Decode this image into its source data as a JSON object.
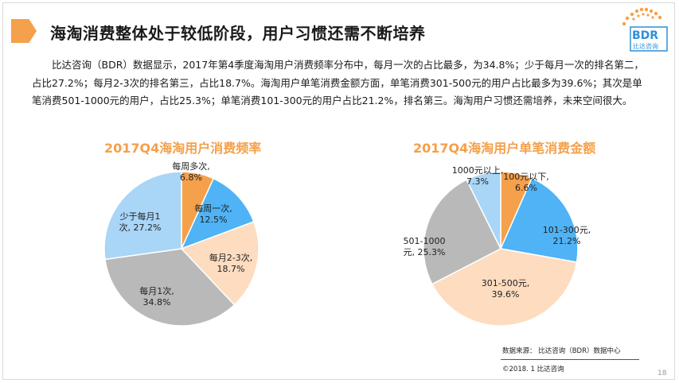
{
  "header": {
    "title": "海淘消费整体处于较低阶段，用户习惯还需不断培养"
  },
  "logo": {
    "text": "BDR",
    "sub": "比达咨询"
  },
  "paragraph": "比达咨询（BDR）数据显示，2017年第4季度海淘用户消费频率分布中，每月一次的占比最多，为34.8%；少于每月一次的排名第二，占比27.2%；每月2-3次的排名第三，占比18.7%。海淘用户单笔消费金额方面，单笔消费301-500元的用户占比最多为39.6%；其次是单笔消费501-1000元的用户，占比25.3%；单笔消费101-300元的用户占比21.2%，排名第三。海淘用户习惯还需培养，未来空间很大。",
  "chart_data": [
    {
      "type": "pie",
      "title": "2017Q4海淘用户消费频率",
      "slices": [
        {
          "label": "每周多次",
          "value": 6.8,
          "color": "#f5a04a",
          "text": [
            "每周多次,",
            "6.8%"
          ]
        },
        {
          "label": "每周一次",
          "value": 12.5,
          "color": "#4fb3f6",
          "text": [
            "每周一次,",
            "12.5%"
          ]
        },
        {
          "label": "每月2-3次",
          "value": 18.7,
          "color": "#fddcc0",
          "text": [
            "每月2-3次,",
            "18.7%"
          ]
        },
        {
          "label": "每月1次",
          "value": 34.8,
          "color": "#b9b9b9",
          "text": [
            "每月1次,",
            "34.8%"
          ]
        },
        {
          "label": "少于每月1次",
          "value": 27.2,
          "color": "#a9d5f7",
          "text": [
            "少于每月1",
            "次, 27.2%"
          ]
        }
      ]
    },
    {
      "type": "pie",
      "title": "2017Q4海淘用户单笔消费金额",
      "slices": [
        {
          "label": "100元以下",
          "value": 6.6,
          "color": "#f5a04a",
          "text": [
            "100元以下,",
            "6.6%"
          ]
        },
        {
          "label": "101-300元",
          "value": 21.2,
          "color": "#4fb3f6",
          "text": [
            "101-300元,",
            "21.2%"
          ]
        },
        {
          "label": "301-500元",
          "value": 39.6,
          "color": "#fddcc0",
          "text": [
            "301-500元,",
            "39.6%"
          ]
        },
        {
          "label": "501-1000元",
          "value": 25.3,
          "color": "#b9b9b9",
          "text": [
            "501-1000",
            "元, 25.3%"
          ]
        },
        {
          "label": "1000元以上",
          "value": 7.3,
          "color": "#a9d5f7",
          "text": [
            "1000元以上,",
            "7.3%"
          ]
        }
      ]
    }
  ],
  "footer": {
    "source": "数据来源： 比达咨询（BDR）数据中心",
    "copyright": "©2018. 1 比达咨询",
    "page_number": "18"
  }
}
